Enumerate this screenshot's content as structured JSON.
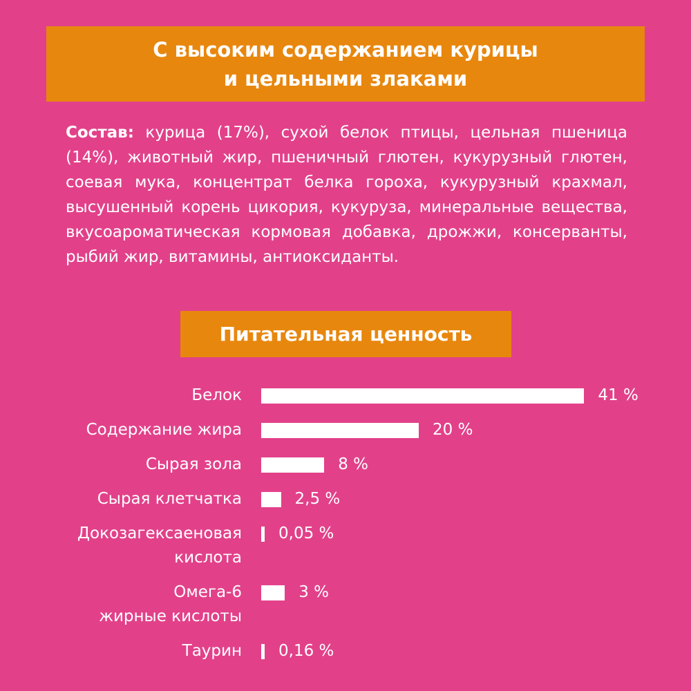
{
  "header": {
    "title": "С высоким содержанием курицы\nи цельными злаками"
  },
  "composition": {
    "label": "Состав:",
    "text": "курица (17%), сухой белок птицы, цельная пшеница (14%), животный жир, пшеничный глютен, кукурузный глютен, соевая мука, концентрат белка гороха, кукурузный крахмал, высушенный корень цикория, кукуруза, минеральные вещества, вкусоароматическая кормовая добавка, дрожжи, консерванты, рыбий жир, витамины, антиоксиданты."
  },
  "chart_data": {
    "type": "bar",
    "orientation": "horizontal",
    "title": "Питательная ценность",
    "categories": [
      "Белок",
      "Содержание жира",
      "Сырая зола",
      "Сырая клетчатка",
      "Докозагексаеновая\nкислота",
      "Омега-6\nжирные кислоты",
      "Таурин"
    ],
    "values": [
      41,
      20,
      8,
      2.5,
      0.05,
      3,
      0.16
    ],
    "value_labels": [
      "41 %",
      "20 %",
      "8 %",
      "2,5 %",
      "0,05 %",
      "3 %",
      "0,16 %"
    ],
    "color": "#ffffff"
  }
}
